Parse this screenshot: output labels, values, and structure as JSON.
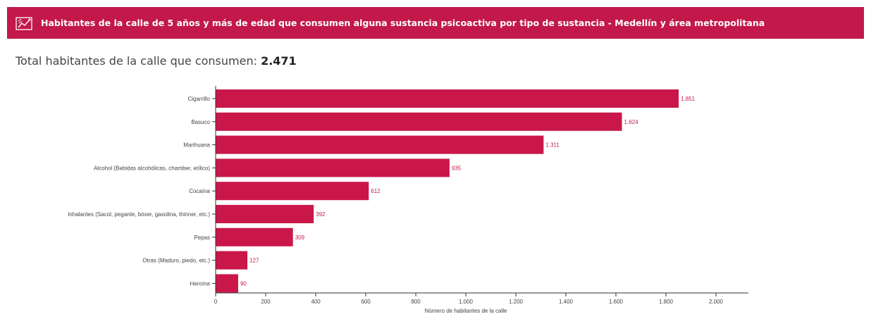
{
  "header": {
    "title": "Habitantes de la calle de 5 años y más de edad que consumen alguna sustancia psicoactiva por tipo de sustancia - Medellín y área metropolitana",
    "icon": "chart-logo-icon",
    "color": "#c2184a"
  },
  "summary": {
    "label": "Total habitantes de la calle que consumen: ",
    "value": "2.471"
  },
  "chart_data": {
    "type": "bar",
    "orientation": "horizontal",
    "categories": [
      "Cigarrillo",
      "Basuco",
      "Marihuana",
      "Alcohol (Bebidas alcohólicas, chamber, etílico)",
      "Cocaína",
      "Inhalantes (Sacol, pegante, bóxer, gasolina, thinner, etc.)",
      "Pepas",
      "Otras (Maduro, piedo, etc.)",
      "Heroína"
    ],
    "values": [
      1851,
      1624,
      1311,
      935,
      612,
      392,
      309,
      127,
      90
    ],
    "value_labels": [
      "1.851",
      "1.624",
      "1.311",
      "935",
      "612",
      "392",
      "309",
      "127",
      "90"
    ],
    "xlabel": "Número de habitantes de la calle",
    "xlim": [
      0,
      2000
    ],
    "xticks": [
      0,
      200,
      400,
      600,
      800,
      1000,
      1200,
      1400,
      1600,
      1800,
      2000
    ],
    "xtick_labels": [
      "0",
      "200",
      "400",
      "600",
      "800",
      "1.000",
      "1.200",
      "1.400",
      "1.600",
      "1.800",
      "2.000"
    ],
    "bar_color": "#c9174a",
    "grid": false
  }
}
